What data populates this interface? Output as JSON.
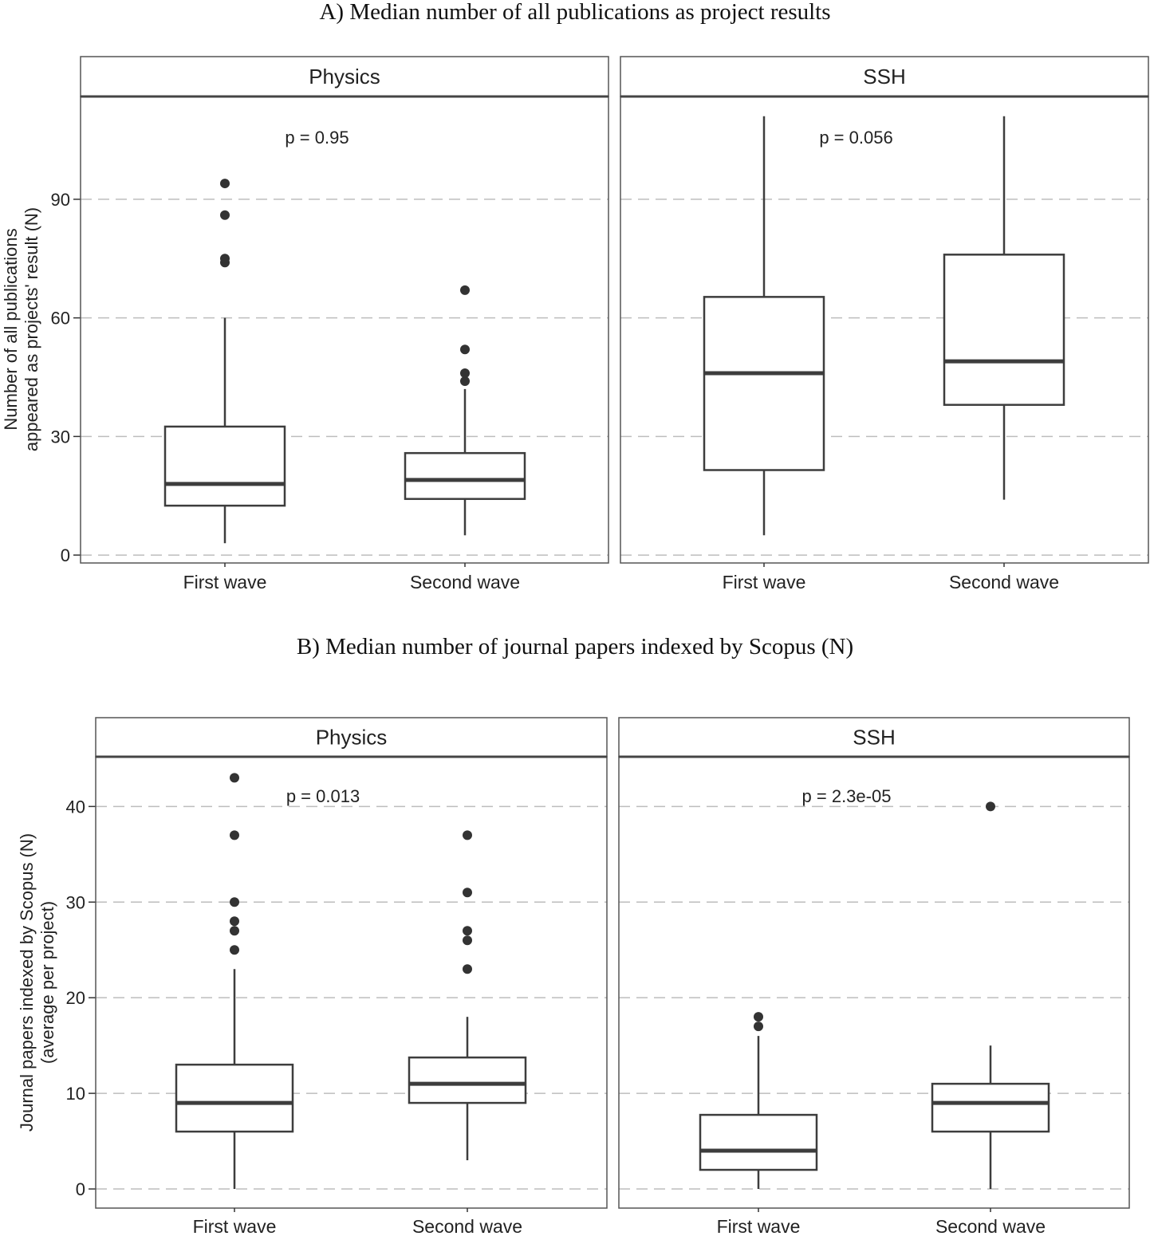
{
  "chart_data": [
    {
      "type": "box",
      "title": "A) Median number of all publications as project results",
      "ylabel_lines": [
        "Number of all publications",
        "appeared as projects' result (N)"
      ],
      "ylim": [
        -2,
        116
      ],
      "yticks": [
        "0",
        "30",
        "60",
        "90"
      ],
      "ytick_values": [
        0,
        30,
        60,
        90
      ],
      "grid": "horizontal-dashed",
      "categories": [
        "First wave",
        "Second wave"
      ],
      "facets": [
        {
          "name": "Physics",
          "p_value": "p = 0.95",
          "boxes": [
            {
              "category": "First wave",
              "whisker_low": 3,
              "q1": 12.5,
              "median": 18,
              "q3": 32.5,
              "whisker_high": 60,
              "outliers": [
                74,
                75,
                86,
                94
              ]
            },
            {
              "category": "Second wave",
              "whisker_low": 5,
              "q1": 14.2,
              "median": 19,
              "q3": 25.8,
              "whisker_high": 42,
              "outliers": [
                44,
                46,
                52,
                67
              ]
            }
          ]
        },
        {
          "name": "SSH",
          "p_value": "p = 0.056",
          "boxes": [
            {
              "category": "First wave",
              "whisker_low": 5,
              "q1": 21.5,
              "median": 46,
              "q3": 65.3,
              "whisker_high": 111,
              "outliers": []
            },
            {
              "category": "Second wave",
              "whisker_low": 14,
              "q1": 38,
              "median": 49,
              "q3": 76,
              "whisker_high": 111,
              "outliers": []
            }
          ]
        }
      ]
    },
    {
      "type": "box",
      "title": "B) Median number of journal papers indexed by Scopus (N)",
      "ylabel_lines": [
        "Journal papers indexed by Scopus (N)",
        "(average per project)"
      ],
      "ylim": [
        -2,
        45.2
      ],
      "yticks": [
        "0",
        "10",
        "20",
        "30",
        "40"
      ],
      "ytick_values": [
        0,
        10,
        20,
        30,
        40
      ],
      "grid": "horizontal-dashed",
      "categories": [
        "First wave",
        "Second wave"
      ],
      "facets": [
        {
          "name": "Physics",
          "p_value": "p = 0.013",
          "boxes": [
            {
              "category": "First wave",
              "whisker_low": 0,
              "q1": 6,
              "median": 9,
              "q3": 13,
              "whisker_high": 23,
              "outliers": [
                25,
                27,
                28,
                30,
                37,
                43
              ]
            },
            {
              "category": "Second wave",
              "whisker_low": 3,
              "q1": 9,
              "median": 11,
              "q3": 13.75,
              "whisker_high": 18,
              "outliers": [
                23,
                26,
                27,
                31,
                37
              ]
            }
          ]
        },
        {
          "name": "SSH",
          "p_value": "p = 2.3e-05",
          "boxes": [
            {
              "category": "First wave",
              "whisker_low": 0,
              "q1": 2,
              "median": 4,
              "q3": 7.75,
              "whisker_high": 16,
              "outliers": [
                17,
                18
              ]
            },
            {
              "category": "Second wave",
              "whisker_low": 0,
              "q1": 6,
              "median": 9,
              "q3": 11,
              "whisker_high": 15,
              "outliers": [
                40
              ]
            }
          ]
        }
      ]
    }
  ]
}
